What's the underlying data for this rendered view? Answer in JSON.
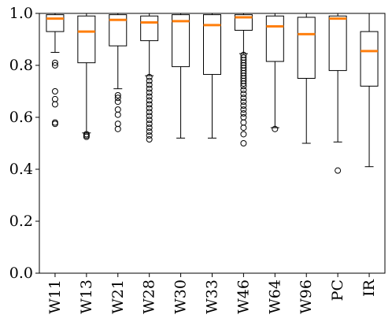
{
  "chart_data": {
    "type": "box",
    "title": "",
    "xlabel": "",
    "ylabel": "",
    "ylim": [
      0.0,
      1.0
    ],
    "yticks": [
      0.0,
      0.2,
      0.4,
      0.6,
      0.8,
      1.0
    ],
    "ytick_labels": [
      "0.0",
      "0.2",
      "0.4",
      "0.6",
      "0.8",
      "1.0"
    ],
    "grid": false,
    "legend": "none",
    "box_color": "#000000",
    "median_color": "#ff7f0e",
    "categories": [
      "W11",
      "W13",
      "W21",
      "W28",
      "W30",
      "W33",
      "W46",
      "W64",
      "W96",
      "PC",
      "IR"
    ],
    "boxes": [
      {
        "label": "W11",
        "whislo": 0.85,
        "q1": 0.93,
        "med": 0.98,
        "q3": 0.995,
        "whishi": 1.0,
        "fliers": [
          0.81,
          0.8,
          0.7,
          0.67,
          0.65,
          0.58,
          0.575
        ]
      },
      {
        "label": "W13",
        "whislo": 0.54,
        "q1": 0.81,
        "med": 0.93,
        "q3": 0.99,
        "whishi": 1.0,
        "fliers": [
          0.535,
          0.53,
          0.525
        ]
      },
      {
        "label": "W21",
        "whislo": 0.71,
        "q1": 0.875,
        "med": 0.975,
        "q3": 0.995,
        "whishi": 1.0,
        "fliers": [
          0.685,
          0.675,
          0.66,
          0.63,
          0.61,
          0.575,
          0.555
        ]
      },
      {
        "label": "W28",
        "whislo": 0.76,
        "q1": 0.895,
        "med": 0.965,
        "q3": 0.99,
        "whishi": 1.0,
        "fliers": [
          0.755,
          0.74,
          0.725,
          0.71,
          0.695,
          0.68,
          0.665,
          0.65,
          0.635,
          0.62,
          0.605,
          0.59,
          0.575,
          0.56,
          0.545,
          0.53,
          0.515
        ]
      },
      {
        "label": "W30",
        "whislo": 0.52,
        "q1": 0.795,
        "med": 0.97,
        "q3": 0.995,
        "whishi": 1.0,
        "fliers": []
      },
      {
        "label": "W33",
        "whislo": 0.52,
        "q1": 0.765,
        "med": 0.955,
        "q3": 0.995,
        "whishi": 1.0,
        "fliers": []
      },
      {
        "label": "W46",
        "whislo": 0.845,
        "q1": 0.935,
        "med": 0.985,
        "q3": 0.995,
        "whishi": 1.0,
        "fliers": [
          0.84,
          0.83,
          0.82,
          0.81,
          0.8,
          0.79,
          0.78,
          0.77,
          0.76,
          0.75,
          0.74,
          0.73,
          0.72,
          0.705,
          0.69,
          0.675,
          0.66,
          0.645,
          0.63,
          0.615,
          0.6,
          0.58,
          0.56,
          0.535,
          0.5
        ]
      },
      {
        "label": "W64",
        "whislo": 0.56,
        "q1": 0.815,
        "med": 0.95,
        "q3": 0.99,
        "whishi": 1.0,
        "fliers": [
          0.555
        ]
      },
      {
        "label": "W96",
        "whislo": 0.5,
        "q1": 0.75,
        "med": 0.92,
        "q3": 0.985,
        "whishi": 1.0,
        "fliers": []
      },
      {
        "label": "PC",
        "whislo": 0.505,
        "q1": 0.78,
        "med": 0.98,
        "q3": 0.99,
        "whishi": 1.0,
        "fliers": [
          0.395
        ]
      },
      {
        "label": "IR",
        "whislo": 0.41,
        "q1": 0.72,
        "med": 0.855,
        "q3": 0.93,
        "whishi": 1.0,
        "fliers": []
      }
    ]
  }
}
